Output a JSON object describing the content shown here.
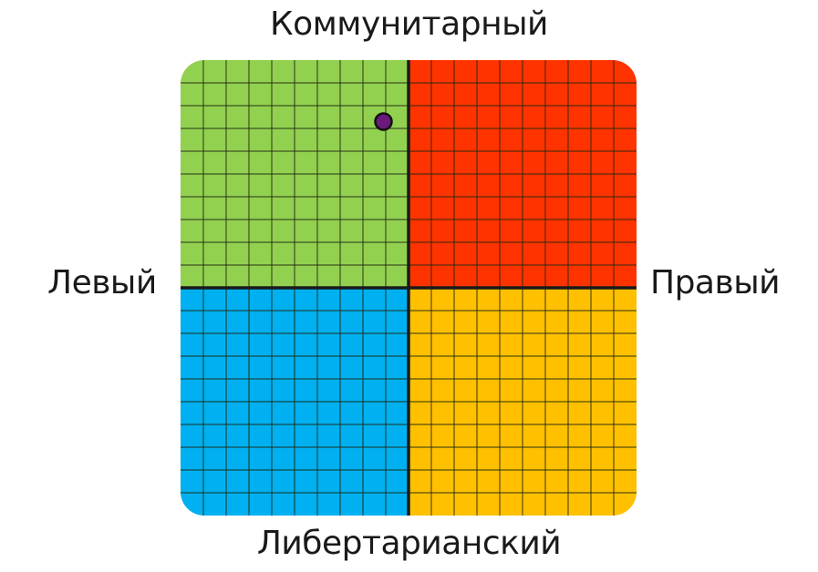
{
  "chart_data": {
    "type": "scatter",
    "title": "",
    "labels": {
      "top": "Коммунитарный",
      "bottom": "Либертарианский",
      "left": "Левый",
      "right": "Правый"
    },
    "xlim": [
      -10,
      10
    ],
    "ylim": [
      -10,
      10
    ],
    "grid": true,
    "grid_divisions": 20,
    "quadrant_colors": {
      "top_left": "#92d050",
      "top_right": "#ff3300",
      "bottom_left": "#00b0f0",
      "bottom_right": "#ffc000"
    },
    "points": [
      {
        "x": -1.1,
        "y": 7.3,
        "color": "#6a1b7a"
      }
    ]
  }
}
